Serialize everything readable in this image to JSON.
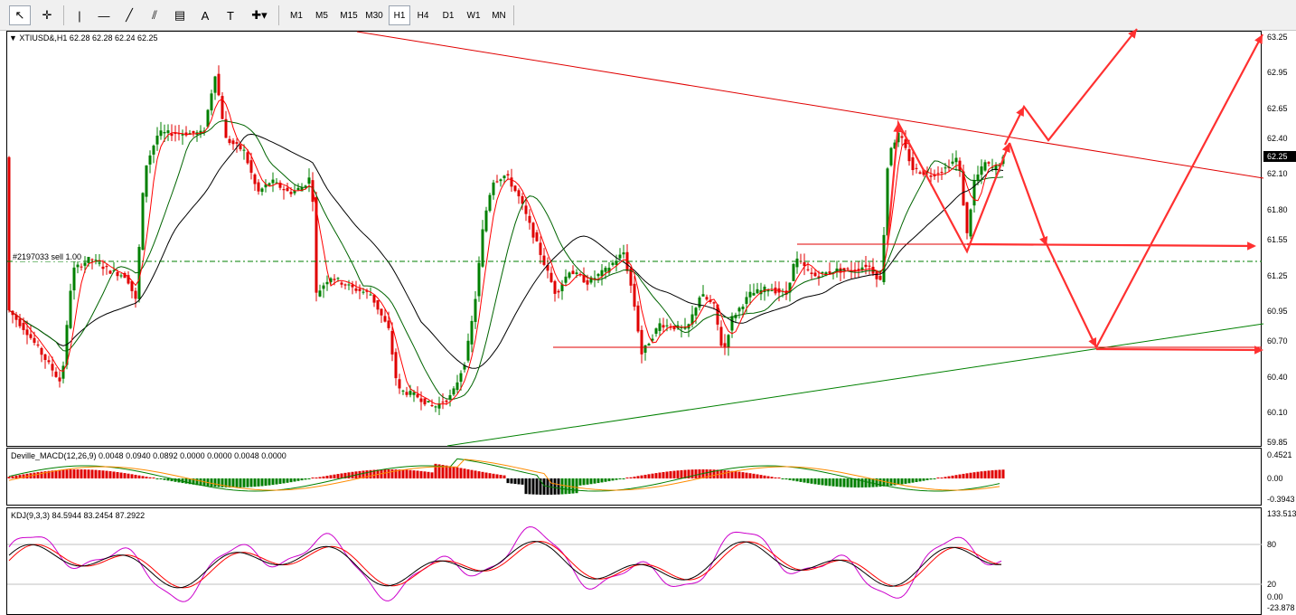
{
  "toolbar": {
    "tools": [
      {
        "name": "cursor-tool",
        "glyph": "↖"
      },
      {
        "name": "crosshair-tool",
        "glyph": "✛"
      },
      {
        "name": "vertical-line-tool",
        "glyph": "|"
      },
      {
        "name": "horizontal-line-tool",
        "glyph": "—"
      },
      {
        "name": "trendline-tool",
        "glyph": "╱"
      },
      {
        "name": "channel-tool",
        "glyph": "⫽"
      },
      {
        "name": "fibonacci-tool",
        "glyph": "▤"
      },
      {
        "name": "text-tool",
        "glyph": "A"
      },
      {
        "name": "label-tool",
        "glyph": "T"
      },
      {
        "name": "shapes-tool",
        "glyph": "✚▾"
      }
    ],
    "timeframes": [
      "M1",
      "M5",
      "M15",
      "M30",
      "H1",
      "H4",
      "D1",
      "W1",
      "MN"
    ],
    "active_timeframe": "H1"
  },
  "main_chart": {
    "title": "XTIUSD&,H1  62.28 62.28 62.24 62.25",
    "order_label": "#2197033 sell 1.00",
    "current_price": "62.25",
    "price_axis": [
      "63.25",
      "62.95",
      "62.65",
      "62.40",
      "62.10",
      "61.80",
      "61.55",
      "61.25",
      "60.95",
      "60.70",
      "60.40",
      "60.10",
      "59.85"
    ],
    "ylim": [
      59.82,
      63.31
    ],
    "colors": {
      "bull": "#008000",
      "bear": "#e00000",
      "ma_fast": "#ff0000",
      "ma_mid": "#006400",
      "ma_slow": "#000000",
      "projection": "#ff3030"
    }
  },
  "macd_panel": {
    "title": "Deville_MACD(12,26,9) 0.0048 0.0940 0.0892 0.0000 0.0000 0.0048 0.0000",
    "axis": [
      "0.4521",
      "0.00",
      "-0.3943"
    ]
  },
  "kdj_panel": {
    "title": "KDJ(9,3,3) 84.5944 83.2454 87.2922",
    "axis": [
      "133.513",
      "80",
      "20",
      "0.00",
      "-23.878"
    ]
  }
}
